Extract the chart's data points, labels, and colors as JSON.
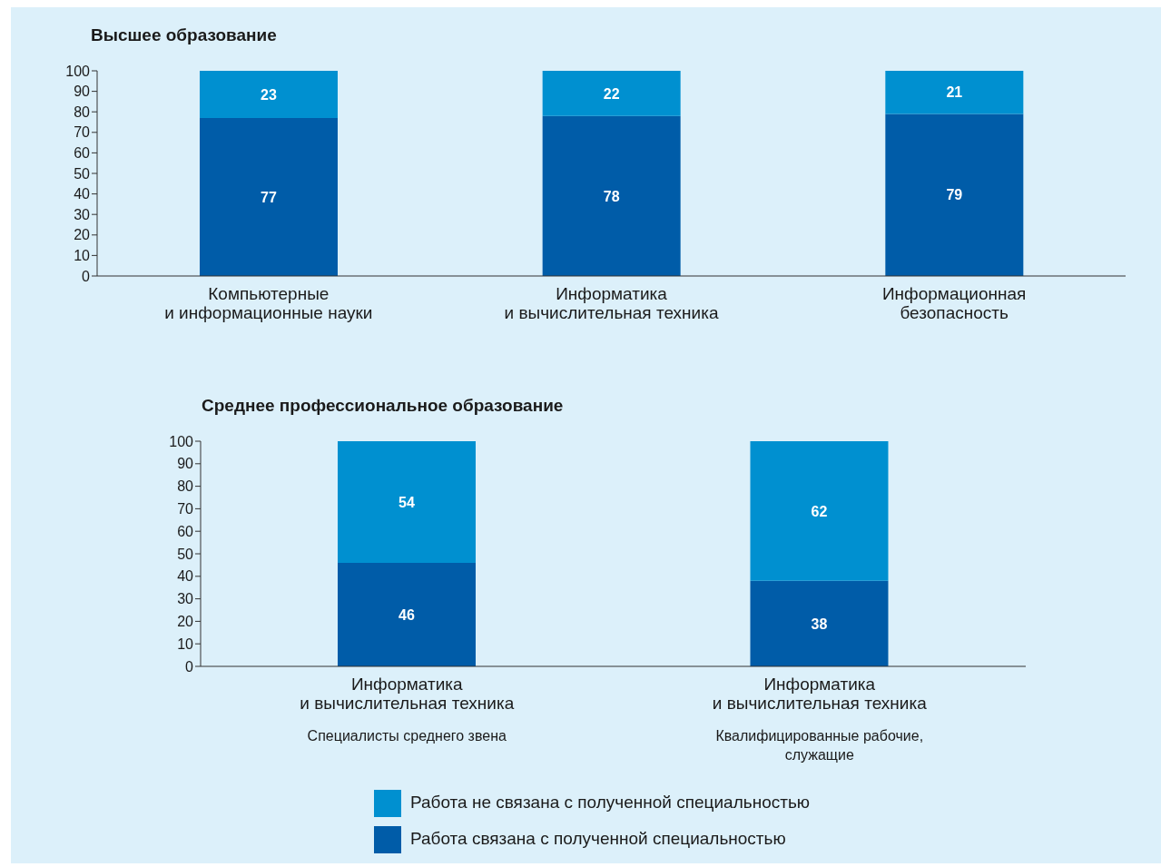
{
  "chart_data": [
    {
      "type": "bar",
      "title": "Высшее образование",
      "categories": [
        "Компьютерные\nи информационные науки",
        "Информатика\nи вычислительная техника",
        "Информационная\nбезопасность"
      ],
      "stacked": true,
      "data_labels": true,
      "ylim": [
        0,
        100
      ],
      "yticks": [
        0,
        10,
        20,
        30,
        40,
        50,
        60,
        70,
        80,
        90,
        100
      ],
      "series": [
        {
          "color": "#005ca8",
          "values": [
            77,
            78,
            79
          ]
        },
        {
          "color": "#0090d0",
          "values": [
            23,
            22,
            21
          ]
        }
      ]
    },
    {
      "type": "bar",
      "title": "Среднее профессиональное образование",
      "categories": [
        "Информатика\nи вычислительная техника\n\nСпециалисты среднего звена",
        "Информатика\nи вычислительная техника\n\nКвалифицированные рабочие,\nслужащие"
      ],
      "stacked": true,
      "data_labels": true,
      "legend": "bottom",
      "ylim": [
        0,
        100
      ],
      "yticks": [
        0,
        10,
        20,
        30,
        40,
        50,
        60,
        70,
        80,
        90,
        100
      ],
      "series": [
        {
          "name": "Работа связана с полученной специальностью",
          "color": "#005ca8",
          "values": [
            46,
            38
          ]
        },
        {
          "name": "Работа не связана с полученной специальностью",
          "color": "#0090d0",
          "values": [
            54,
            62
          ]
        }
      ]
    }
  ]
}
